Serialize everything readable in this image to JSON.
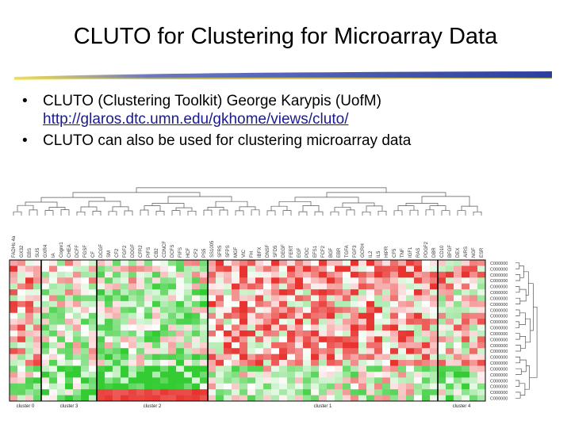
{
  "slide": {
    "title": "CLUTO for Clustering for Microarray Data",
    "bullets": [
      {
        "text": "CLUTO (Clustering Toolkit) George Karypis (UofM)",
        "link": "http://glaros.dtc.umn.edu/gkhome/views/cluto/"
      },
      {
        "text": "CLUTO can also be used for clustering microarray data",
        "link": ""
      }
    ]
  },
  "colors": {
    "accent_blue": "#2b3f9e",
    "accent_yellow": "#f0dc3c",
    "heat_red": "#e8332f",
    "heat_green": "#33cc33",
    "heat_white": "#ffffff"
  },
  "figure": {
    "cluster_labels": [
      "cluster 0",
      "cluster 3",
      "cluster 2",
      "cluster 1",
      "cluster 4"
    ],
    "cluster_column_counts": [
      4,
      7,
      14,
      29,
      6
    ],
    "column_labels": [
      "FADHs 4a",
      "GX32",
      "EBS",
      "SUS",
      "GXR4",
      "IA",
      "Cognr1",
      "CHEA",
      "DCFF",
      "FGSF",
      "CF",
      "DCGF",
      "SM",
      "CF2",
      "FGF2",
      "DDGF",
      "CFR2",
      "PIFS",
      "CB2",
      "CDNCF",
      "DCFS",
      "FIFS",
      "HCF",
      "CF2",
      "PS5",
      "SS1005",
      "SFR5",
      "SFPS",
      "MGF",
      "VIC",
      "FH",
      "IBFX",
      "DNSF",
      "SFD5",
      "DEGF",
      "FERT",
      "EGF",
      "PDC",
      "EFS1",
      "FCF2",
      "BGF",
      "EBR",
      "TGFA",
      "FGF3",
      "GCRH",
      "IL2",
      "IL5",
      "HIPR",
      "CF5",
      "TNF",
      "IGF1",
      "RAS",
      "PDGF2",
      "DBR",
      "CD10",
      "BFGF",
      "DEX",
      "AIRS",
      "NGF",
      "ESR"
    ],
    "row_labels": [
      "C000000",
      "C000000",
      "C000000",
      "C000000",
      "C000000",
      "C000000",
      "C000000",
      "C000000",
      "C000000",
      "C000000",
      "C000000",
      "C000000",
      "C000000",
      "C000000",
      "C000000",
      "C000000",
      "C000000",
      "C000000",
      "C000000",
      "C000000",
      "C000000",
      "C000000",
      "C000000",
      "C000000"
    ]
  }
}
